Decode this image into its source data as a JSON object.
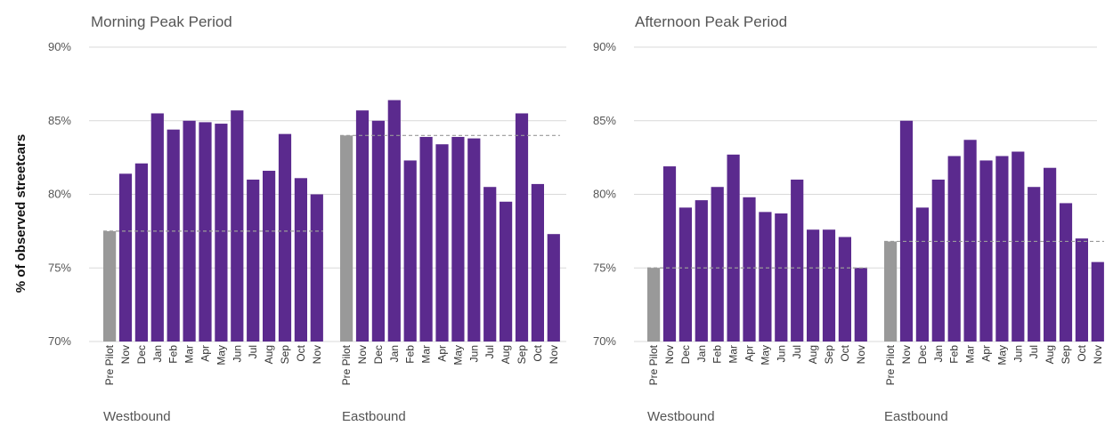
{
  "ylabel": "% of observed streetcars",
  "colors": {
    "bar": "#5b2a8e",
    "baseline_bar": "#999999",
    "grid": "#d9d9d9",
    "reference_line": "#9a9a9a"
  },
  "chart_data": [
    {
      "type": "bar",
      "title": "Morning Peak Period",
      "ylim": [
        70,
        90
      ],
      "yticks": [
        70,
        75,
        80,
        85,
        90
      ],
      "ytick_labels": [
        "70%",
        "75%",
        "80%",
        "85%",
        "90%"
      ],
      "grid": true,
      "groups": [
        {
          "label": "Westbound",
          "categories": [
            "Pre Pilot",
            "Nov",
            "Dec",
            "Jan",
            "Feb",
            "Mar",
            "Apr",
            "May",
            "Jun",
            "Jul",
            "Aug",
            "Sep",
            "Oct",
            "Nov"
          ],
          "values": [
            77.5,
            81.4,
            82.1,
            85.5,
            84.4,
            85.0,
            84.9,
            84.8,
            85.7,
            81.0,
            81.6,
            84.1,
            81.1,
            80.0
          ],
          "reference_value": 77.5
        },
        {
          "label": "Eastbound",
          "categories": [
            "Pre Pilot",
            "Nov",
            "Dec",
            "Jan",
            "Feb",
            "Mar",
            "Apr",
            "May",
            "Jun",
            "Jul",
            "Aug",
            "Sep",
            "Oct",
            "Nov"
          ],
          "values": [
            84.0,
            85.7,
            85.0,
            86.4,
            82.3,
            83.9,
            83.4,
            83.9,
            83.8,
            80.5,
            79.5,
            85.5,
            80.7,
            77.3
          ],
          "reference_value": 84.0
        }
      ]
    },
    {
      "type": "bar",
      "title": "Afternoon Peak Period",
      "ylim": [
        70,
        90
      ],
      "yticks": [
        70,
        75,
        80,
        85,
        90
      ],
      "ytick_labels": [
        "70%",
        "75%",
        "80%",
        "85%",
        "90%"
      ],
      "grid": true,
      "groups": [
        {
          "label": "Westbound",
          "categories": [
            "Pre Pilot",
            "Nov",
            "Dec",
            "Jan",
            "Feb",
            "Mar",
            "Apr",
            "May",
            "Jun",
            "Jul",
            "Aug",
            "Sep",
            "Oct",
            "Nov"
          ],
          "values": [
            75.0,
            81.9,
            79.1,
            79.6,
            80.5,
            82.7,
            79.8,
            78.8,
            78.7,
            81.0,
            77.6,
            77.6,
            77.1,
            75.0
          ],
          "reference_value": 75.0
        },
        {
          "label": "Eastbound",
          "categories": [
            "Pre Pilot",
            "Nov",
            "Dec",
            "Jan",
            "Feb",
            "Mar",
            "Apr",
            "May",
            "Jun",
            "Jul",
            "Aug",
            "Sep",
            "Oct",
            "Nov"
          ],
          "values": [
            76.8,
            85.0,
            79.1,
            81.0,
            82.6,
            83.7,
            82.3,
            82.6,
            82.9,
            80.5,
            81.8,
            79.4,
            77.0,
            75.4
          ],
          "reference_value": 76.8
        }
      ]
    }
  ]
}
